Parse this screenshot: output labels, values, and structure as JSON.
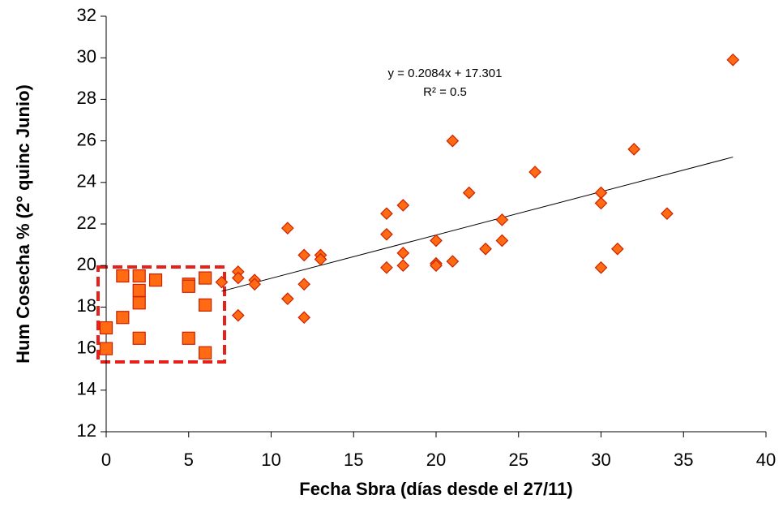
{
  "chart_data": {
    "type": "scatter",
    "x_label": "Fecha Sbra (días desde el 27/11)",
    "y_label": "Hum Cosecha % (2° quinc Junio)",
    "xlim": [
      0,
      40
    ],
    "xticks": [
      0,
      5,
      10,
      15,
      20,
      25,
      30,
      35,
      40
    ],
    "ylim": [
      12,
      32
    ],
    "yticks": [
      12,
      14,
      16,
      18,
      20,
      22,
      24,
      26,
      28,
      30,
      32
    ],
    "grid": false,
    "series": [
      {
        "marker": "square",
        "color": "#ff6a13",
        "edge": "#cc2200",
        "x": [
          0,
          0,
          1,
          1,
          2,
          2,
          2,
          2,
          3,
          5,
          5,
          5,
          6,
          6,
          6
        ],
        "values": [
          17.0,
          16.0,
          19.5,
          17.5,
          19.5,
          18.8,
          18.2,
          16.5,
          19.3,
          19.1,
          19.0,
          16.5,
          19.4,
          18.1,
          15.8
        ]
      },
      {
        "marker": "diamond",
        "color": "#ff6a13",
        "edge": "#cc2200",
        "x": [
          7,
          8,
          8,
          8,
          9,
          9,
          11,
          11,
          12,
          12,
          12,
          13,
          13,
          17,
          17,
          17,
          18,
          18,
          18,
          20,
          20,
          20,
          21,
          21,
          22,
          23,
          24,
          24,
          26,
          30,
          30,
          30,
          31,
          32,
          34,
          38
        ],
        "values": [
          19.2,
          19.7,
          19.4,
          17.6,
          19.3,
          19.1,
          21.8,
          18.4,
          20.5,
          19.1,
          17.5,
          20.5,
          20.3,
          22.5,
          21.5,
          19.9,
          22.9,
          20.6,
          20.0,
          21.2,
          20.1,
          20.0,
          26.0,
          20.2,
          23.5,
          20.8,
          22.2,
          21.2,
          24.5,
          23.5,
          23.0,
          19.9,
          20.8,
          25.6,
          22.5,
          29.9
        ]
      }
    ],
    "trendline": {
      "equation": "y = 0.2084x + 17.301",
      "r2": "R² = 0.5",
      "slope": 0.2084,
      "intercept": 17.301,
      "xlim": [
        7,
        38
      ],
      "color": "#000000"
    }
  }
}
